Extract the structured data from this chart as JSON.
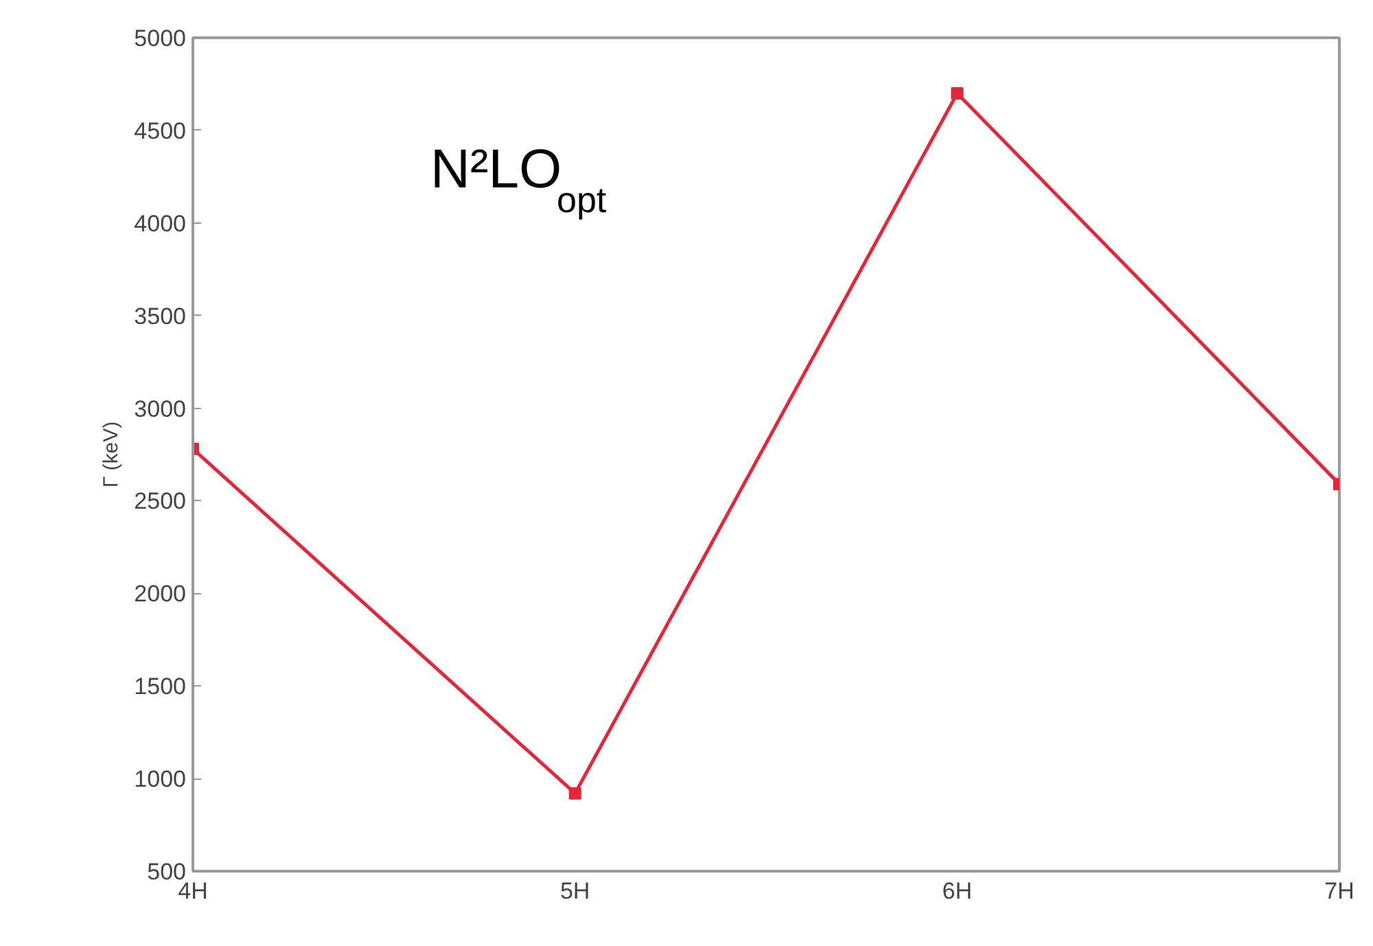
{
  "chart_data": {
    "type": "line",
    "ylabel": "Γ (keV)",
    "categories": [
      "4H",
      "5H",
      "6H",
      "7H"
    ],
    "series": [
      {
        "color": "#e0283a",
        "values": [
          2780,
          920,
          4700,
          2590
        ]
      }
    ],
    "ylim": [
      500,
      5000
    ],
    "yticks": [
      500,
      1000,
      1500,
      2000,
      2500,
      3000,
      3500,
      4000,
      4500,
      5000
    ],
    "annotations": [
      "N²LO$_{opt}$"
    ],
    "marker": "square",
    "grid": false
  }
}
